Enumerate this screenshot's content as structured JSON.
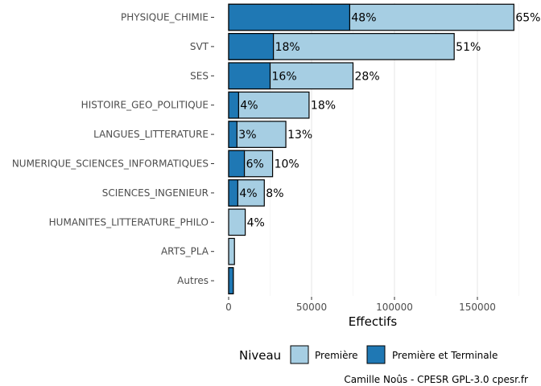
{
  "chart_data": {
    "type": "bar",
    "orientation": "horizontal",
    "stacking": "overlay",
    "xlabel": "Effectifs",
    "ylabel": "",
    "xlim": [
      0,
      175000
    ],
    "x_ticks": [
      0,
      50000,
      100000,
      150000
    ],
    "x_tick_labels": [
      "0",
      "50000",
      "100000",
      "150000"
    ],
    "grid": "vertical major gridlines",
    "categories": [
      "PHYSIQUE_CHIMIE",
      "SVT",
      "SES",
      "HISTOIRE_GEO_POLITIQUE",
      "LANGUES_LITTERATURE",
      "NUMERIQUE_SCIENCES_INFORMATIQUES",
      "SCIENCES_INGENIEUR",
      "HUMANITES_LITTERATURE_PHILO",
      "ARTS_PLA",
      "Autres"
    ],
    "series": [
      {
        "name": "Première",
        "color": "#a6cee3",
        "values": [
          172000,
          136000,
          75000,
          48500,
          34500,
          26500,
          21500,
          10000,
          3500,
          2800
        ],
        "labels": [
          "65%",
          "51%",
          "28%",
          "18%",
          "13%",
          "10%",
          "8%",
          "4%",
          "",
          ""
        ]
      },
      {
        "name": "Première et Terminale",
        "color": "#1f78b4",
        "values": [
          73000,
          27000,
          25000,
          6000,
          5000,
          9500,
          5500,
          0,
          0,
          2800
        ],
        "labels": [
          "48%",
          "18%",
          "16%",
          "4%",
          "3%",
          "6%",
          "4%",
          "",
          "",
          ""
        ]
      }
    ],
    "legend": {
      "title": "Niveau",
      "position": "bottom",
      "entries": [
        "Première",
        "Première et Terminale"
      ]
    }
  },
  "caption": "Camille Noûs - CPESR GPL-3.0 cpesr.fr"
}
